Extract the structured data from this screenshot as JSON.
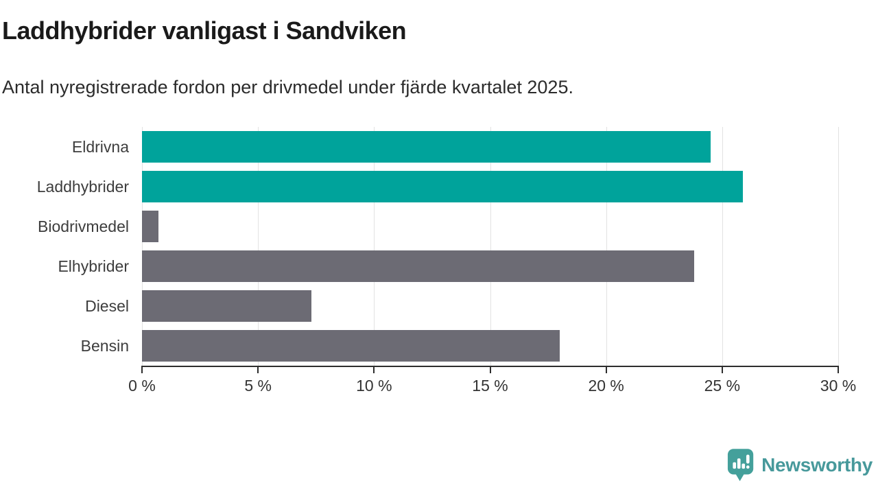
{
  "chart_data": {
    "type": "bar",
    "orientation": "horizontal",
    "title": "Laddhybrider vanligast i Sandviken",
    "subtitle": "Antal nyregistrerade fordon per drivmedel under fjärde kvartalet 2025.",
    "categories": [
      "Eldrivna",
      "Laddhybrider",
      "Biodrivmedel",
      "Elhybrider",
      "Diesel",
      "Bensin"
    ],
    "values": [
      24.5,
      25.9,
      0.7,
      23.8,
      7.3,
      18
    ],
    "unit": "%",
    "xlim": [
      0,
      30
    ],
    "ticks": [
      {
        "value": 0,
        "label": "0 %"
      },
      {
        "value": 5,
        "label": "5 %"
      },
      {
        "value": 10,
        "label": "10 %"
      },
      {
        "value": 15,
        "label": "15 %"
      },
      {
        "value": 20,
        "label": "20 %"
      },
      {
        "value": 25,
        "label": "25 %"
      },
      {
        "value": 30,
        "label": "30 %"
      }
    ],
    "bar_colors": [
      "#00a39b",
      "#00a39b",
      "#6c6b74",
      "#6c6b74",
      "#6c6b74",
      "#6c6b74"
    ],
    "grid": "vertical",
    "legend": "none"
  },
  "colors": {
    "accent_teal": "#00a39b",
    "bar_gray": "#6c6b74",
    "gridline": "#e2e2e2",
    "axis": "#2d2d2d",
    "title_text": "#1a1a1a",
    "label_text": "#3d3d3d",
    "logo_teal": "#47999b"
  },
  "footer": {
    "brand": "Newsworthy"
  }
}
